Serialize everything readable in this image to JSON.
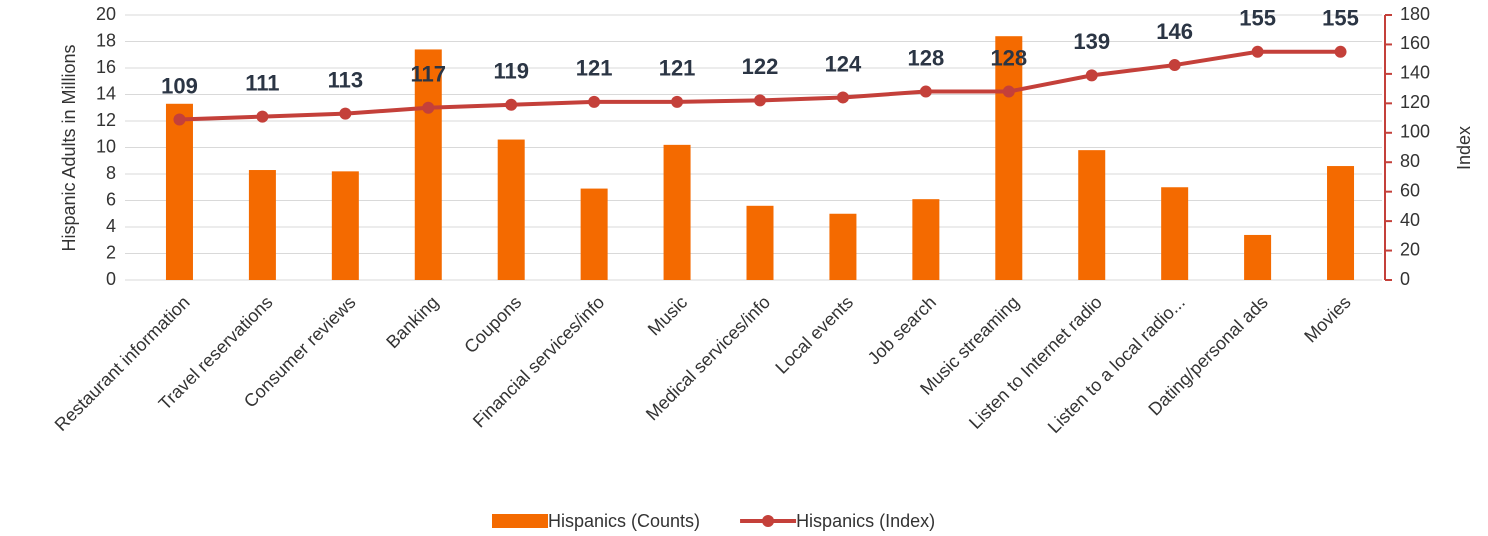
{
  "chart_data": {
    "type": "bar-line",
    "categories": [
      "Restaurant information",
      "Travel reservations",
      "Consumer reviews",
      "Banking",
      "Coupons",
      "Financial services/info",
      "Music",
      "Medical services/info",
      "Local events",
      "Job search",
      "Music streaming",
      "Listen to Internet radio",
      "Listen to a local radio...",
      "Dating/personal ads",
      "Movies"
    ],
    "series": [
      {
        "name": "Hispanics (Counts)",
        "type": "bar",
        "color": "#f46a00",
        "values": [
          13.3,
          8.3,
          8.2,
          17.4,
          10.6,
          6.9,
          10.2,
          5.6,
          5.0,
          6.1,
          18.4,
          9.8,
          7.0,
          3.4,
          8.6
        ]
      },
      {
        "name": "Hispanics (Index)",
        "type": "line",
        "axis": "y2",
        "color": "#c4403a",
        "values": [
          109,
          111,
          113,
          117,
          119,
          121,
          121,
          122,
          124,
          128,
          128,
          139,
          146,
          155,
          155
        ]
      }
    ],
    "ylabel": "Hispanic Adults in Millions",
    "y2label": "Index",
    "ylim": [
      0,
      20
    ],
    "yticks": [
      0,
      2,
      4,
      6,
      8,
      10,
      12,
      14,
      16,
      18,
      20
    ],
    "y2lim": [
      0,
      180
    ],
    "y2ticks": [
      0,
      20,
      40,
      60,
      80,
      100,
      120,
      140,
      160,
      180
    ],
    "grid": true,
    "legend": "bottom"
  }
}
